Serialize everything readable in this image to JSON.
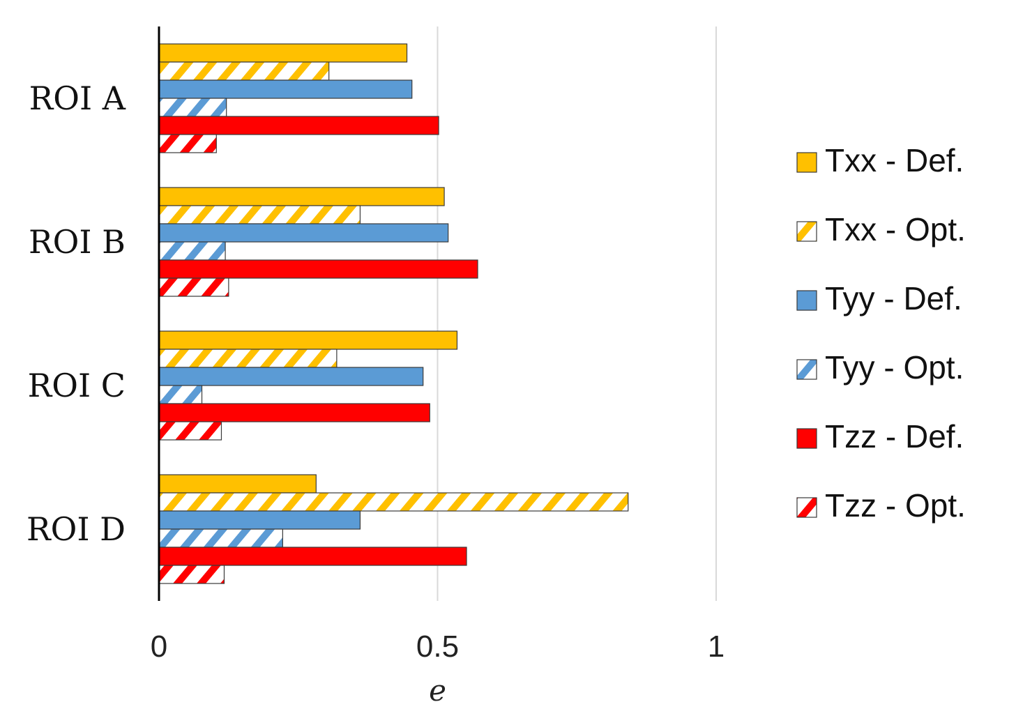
{
  "chart_data": {
    "type": "bar",
    "orientation": "horizontal",
    "categories": [
      "ROI A",
      "ROI B",
      "ROI C",
      "ROI D"
    ],
    "series": [
      {
        "name": "Txx - Def.",
        "color": "#FFC000",
        "pattern": "solid",
        "values": [
          0.445,
          0.512,
          0.535,
          0.282
        ]
      },
      {
        "name": "Txx - Opt.",
        "color": "#FFC000",
        "pattern": "hatched",
        "values": [
          0.305,
          0.361,
          0.319,
          0.842
        ]
      },
      {
        "name": "Tyy - Def.",
        "color": "#5B9BD5",
        "pattern": "solid",
        "values": [
          0.454,
          0.519,
          0.474,
          0.361
        ]
      },
      {
        "name": "Tyy - Opt.",
        "color": "#5B9BD5",
        "pattern": "hatched",
        "values": [
          0.121,
          0.119,
          0.077,
          0.222
        ]
      },
      {
        "name": "Tzz - Def.",
        "color": "#FF0000",
        "pattern": "solid",
        "values": [
          0.502,
          0.572,
          0.486,
          0.552
        ]
      },
      {
        "name": "Tzz - Opt.",
        "color": "#FF0000",
        "pattern": "hatched",
        "values": [
          0.103,
          0.125,
          0.112,
          0.117
        ]
      }
    ],
    "xlabel": "e",
    "ylabel": "",
    "xlim": [
      0,
      1
    ],
    "xticks": [
      0,
      0.5,
      1
    ],
    "xtick_labels": [
      "0",
      "0.5",
      "1"
    ],
    "grid": "vertical",
    "legend_position": "right"
  }
}
